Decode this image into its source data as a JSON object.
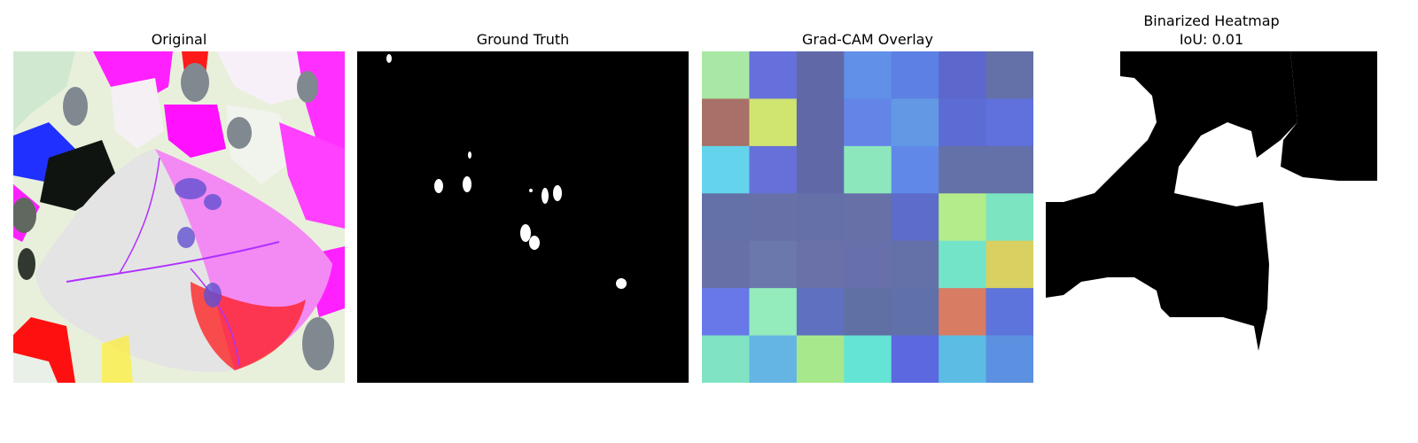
{
  "panels": [
    {
      "title": "Original",
      "content": "diseased leaf photograph with false-color (inverted / contrast-enhanced) rendering"
    },
    {
      "title": "Ground Truth",
      "content": "binary lesion mask: white spots on black"
    },
    {
      "title": "Grad-CAM Overlay",
      "content": "7x7 grid heatmap blended with image"
    },
    {
      "title": "Binarized Heatmap",
      "subtitle": "IoU: 0.01",
      "content": "binary mask of thresholded Grad-CAM"
    }
  ],
  "gradcam_grid": [
    [
      "#a8e8a4",
      "#6670dc",
      "#6068a8",
      "#6090e8",
      "#5c80e4",
      "#5c68cc",
      "#6470a8"
    ],
    [
      "#a87068",
      "#d0e470",
      "#6068a8",
      "#6484e8",
      "#6298e4",
      "#5c6cd4",
      "#6070dc"
    ],
    [
      "#64d4ec",
      "#6670d8",
      "#6068a8",
      "#8ce8bc",
      "#6088e8",
      "#6470a8",
      "#6470a8"
    ],
    [
      "#6470a8",
      "#6870a8",
      "#6670a8",
      "#6870a8",
      "#5c6cc8",
      "#b4ec8c",
      "#7ce4c0"
    ],
    [
      "#6870a8",
      "#6a78ac",
      "#6a70a8",
      "#6870ac",
      "#6470a8",
      "#74e4c8",
      "#d8d060"
    ],
    [
      "#6878e8",
      "#94ecbc",
      "#6070c0",
      "#6070a4",
      "#6070a8",
      "#d87c64",
      "#5c74dc"
    ],
    [
      "#80e4c4",
      "#64b4e4",
      "#a8e88c",
      "#64e4d4",
      "#5c68e0",
      "#5cbce4",
      "#5c90e0"
    ]
  ],
  "colors": {
    "background": "#ffffff",
    "mask_on": "#ffffff",
    "mask_off": "#000000"
  }
}
